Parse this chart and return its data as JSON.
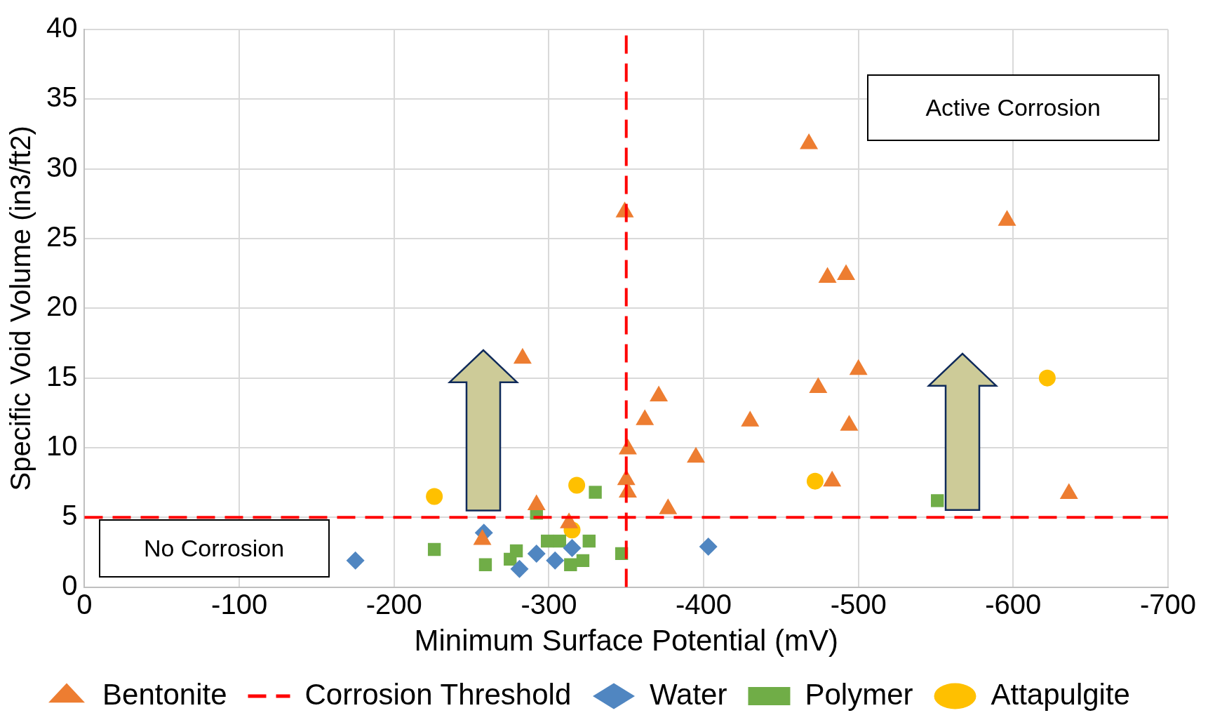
{
  "chart_data": {
    "type": "scatter",
    "xlabel": "Minimum Surface Potential (mV)",
    "ylabel": "Specific Void Volume (in3/ft2)",
    "xlim": [
      0,
      -700
    ],
    "xticks": [
      0,
      -100,
      -200,
      -300,
      -400,
      -500,
      -600,
      -700
    ],
    "ylim": [
      0,
      40
    ],
    "yticks": [
      0,
      5,
      10,
      15,
      20,
      25,
      30,
      35,
      40
    ],
    "grid": true,
    "legend": "bottom",
    "annotations": [
      "Active Corrosion",
      "No Corrosion"
    ],
    "ref_lines": [
      {
        "axis": "y",
        "value": 5,
        "label": "Corrosion Threshold",
        "color": "#ff0000",
        "line_style": "dashed"
      },
      {
        "axis": "x",
        "value": -350,
        "color": "#ff0000",
        "line_style": "dashed"
      }
    ],
    "series": [
      {
        "name": "Bentonite",
        "marker": "triangle",
        "color": "#ed7d31",
        "x": [
          -468,
          -349,
          -596,
          -480,
          -492,
          -283,
          -500,
          -474,
          -371,
          -362,
          -430,
          -494,
          -351,
          -395,
          -483,
          -350,
          -351,
          -636,
          -377,
          -292,
          -313,
          -257
        ],
        "values": [
          31.8,
          26.9,
          26.3,
          22.2,
          22.4,
          16.4,
          15.6,
          14.3,
          13.7,
          12.0,
          11.9,
          11.6,
          9.9,
          9.3,
          7.6,
          7.7,
          6.8,
          6.7,
          5.6,
          5.9,
          4.6,
          3.4
        ]
      },
      {
        "name": "Water",
        "marker": "diamond",
        "color": "#5086c1",
        "x": [
          -175,
          -258,
          -281,
          -292,
          -304,
          -315,
          -403
        ],
        "values": [
          1.9,
          3.9,
          1.3,
          2.4,
          1.9,
          2.8,
          2.9
        ]
      },
      {
        "name": "Polymer",
        "marker": "square",
        "color": "#70ad47",
        "x": [
          -226,
          -259,
          -275,
          -279,
          -292,
          -299,
          -307,
          -314,
          -322,
          -326,
          -330,
          -347,
          -551
        ],
        "values": [
          2.7,
          1.6,
          2.0,
          2.6,
          5.3,
          3.3,
          3.3,
          1.6,
          1.9,
          3.3,
          6.8,
          2.4,
          6.2
        ]
      },
      {
        "name": "Attapulgite",
        "marker": "circle",
        "color": "#ffc000",
        "x": [
          -226,
          -318,
          -315,
          -472,
          -622
        ],
        "values": [
          6.5,
          7.3,
          4.1,
          7.6,
          15.0
        ]
      }
    ]
  }
}
